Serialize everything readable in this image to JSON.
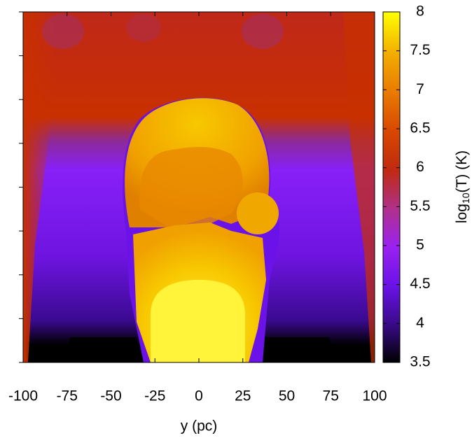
{
  "chart_data": {
    "type": "heatmap",
    "xlabel": "y (pc)",
    "xlim": [
      -100,
      100
    ],
    "xticks": [
      -100,
      -75,
      -50,
      -25,
      0,
      25,
      50,
      75,
      100
    ],
    "colorbar": {
      "label": {
        "base": "log",
        "sub": "10",
        "rest": "(T) (K)"
      },
      "lim": [
        3.5,
        8
      ],
      "ticks": [
        3.5,
        4,
        4.5,
        5,
        5.5,
        6,
        6.5,
        7,
        7.5,
        8
      ]
    }
  }
}
